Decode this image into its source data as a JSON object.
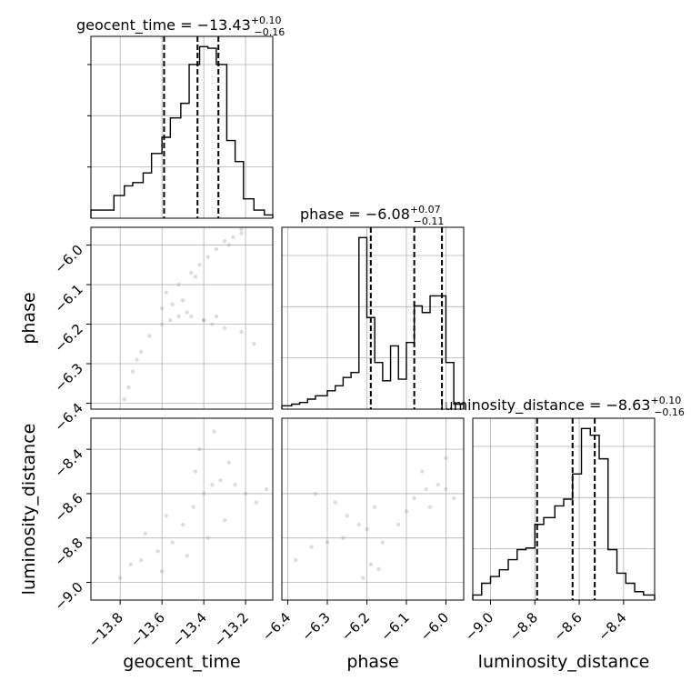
{
  "chart_data": {
    "type": "corner",
    "parameters": [
      "geocent_time",
      "phase",
      "luminosity_distance"
    ],
    "axis_labels": {
      "geocent_time": "geocent_time",
      "phase": "phase",
      "luminosity_distance": "luminosity_distance"
    },
    "ranges": {
      "geocent_time": [
        -13.94,
        -13.07
      ],
      "phase": [
        -6.415,
        -5.955
      ],
      "luminosity_distance": [
        -9.08,
        -8.26
      ]
    },
    "ticks": {
      "geocent_time": [
        -13.8,
        -13.6,
        -13.4,
        -13.2
      ],
      "phase": [
        -6.4,
        -6.3,
        -6.2,
        -6.1,
        -6.0
      ],
      "luminosity_distance": [
        -9.0,
        -8.8,
        -8.6,
        -8.4
      ]
    },
    "tick_labels": {
      "geocent_time": [
        "−13.8",
        "−13.6",
        "−13.4",
        "−13.2"
      ],
      "phase": [
        "−6.4",
        "−6.3",
        "−6.2",
        "−6.1",
        "−6.0"
      ],
      "luminosity_distance": [
        "−9.0",
        "−8.8",
        "−8.6",
        "−8.4"
      ]
    },
    "titles": {
      "geocent_time": {
        "text": "geocent_time = −13.43",
        "plus": "+0.10",
        "minus": "−0.16"
      },
      "phase": {
        "text": "phase = −6.08",
        "plus": "+0.07",
        "minus": "−0.11"
      },
      "luminosity_distance": {
        "text": "luminosity_distance = −8.63",
        "plus": "+0.10",
        "minus": "−0.16"
      }
    },
    "histograms": {
      "geocent_time": {
        "bin_edges": [
          -13.94,
          -13.89,
          -13.83,
          -13.78,
          -13.74,
          -13.69,
          -13.65,
          -13.6,
          -13.56,
          -13.51,
          -13.47,
          -13.42,
          -13.38,
          -13.34,
          -13.29,
          -13.25,
          -13.21,
          -13.16,
          -13.11,
          -13.07
        ],
        "counts": [
          0.05,
          0.05,
          0.14,
          0.2,
          0.22,
          0.28,
          0.4,
          0.5,
          0.62,
          0.71,
          0.95,
          1.06,
          1.05,
          0.95,
          0.48,
          0.35,
          0.12,
          0.05,
          0.02
        ],
        "quantiles": [
          -13.59,
          -13.43,
          -13.33
        ]
      },
      "phase": {
        "bin_edges": [
          -6.415,
          -6.39,
          -6.37,
          -6.35,
          -6.33,
          -6.3,
          -6.28,
          -6.26,
          -6.24,
          -6.22,
          -6.2,
          -6.18,
          -6.16,
          -6.14,
          -6.12,
          -6.1,
          -6.08,
          -6.06,
          -6.04,
          -6.02,
          -6.0,
          -5.98,
          -5.955
        ],
        "counts": [
          0.02,
          0.03,
          0.04,
          0.06,
          0.08,
          0.11,
          0.14,
          0.19,
          0.22,
          1.03,
          0.55,
          0.28,
          0.17,
          0.38,
          0.18,
          0.4,
          0.62,
          0.58,
          0.68,
          0.68,
          0.28,
          0.03
        ],
        "quantiles": [
          -6.19,
          -6.08,
          -6.01
        ]
      },
      "luminosity_distance": {
        "bin_edges": [
          -9.08,
          -9.04,
          -9.0,
          -8.96,
          -8.92,
          -8.88,
          -8.84,
          -8.8,
          -8.76,
          -8.71,
          -8.67,
          -8.63,
          -8.59,
          -8.55,
          -8.51,
          -8.47,
          -8.43,
          -8.39,
          -8.35,
          -8.31,
          -8.26
        ],
        "counts": [
          0.03,
          0.1,
          0.14,
          0.18,
          0.24,
          0.3,
          0.31,
          0.45,
          0.49,
          0.56,
          0.6,
          0.75,
          1.02,
          0.98,
          0.84,
          0.3,
          0.16,
          0.1,
          0.05,
          0.03
        ],
        "quantiles": [
          -8.79,
          -8.63,
          -8.53
        ]
      }
    },
    "scatter": {
      "phase_vs_geocent_time": {
        "x": [
          -13.78,
          -13.76,
          -13.74,
          -13.72,
          -13.7,
          -13.66,
          -13.6,
          -13.56,
          -13.52,
          -13.46,
          -13.4,
          -13.36,
          -13.3,
          -13.22,
          -13.16,
          -13.58,
          -13.52,
          -13.46,
          -13.42,
          -13.38,
          -13.34,
          -13.3,
          -13.26,
          -13.22,
          -13.5,
          -13.44,
          -13.6,
          -13.55,
          -13.48,
          -13.4,
          -13.34,
          -13.28,
          -13.22
        ],
        "y": [
          -6.39,
          -6.36,
          -6.32,
          -6.29,
          -6.27,
          -6.23,
          -6.2,
          -6.19,
          -6.18,
          -6.18,
          -6.19,
          -6.2,
          -6.21,
          -6.22,
          -6.25,
          -6.12,
          -6.1,
          -6.07,
          -6.05,
          -6.03,
          -6.01,
          -5.99,
          -5.98,
          -5.97,
          -6.14,
          -6.08,
          -6.16,
          -6.15,
          -6.17,
          -6.19,
          -6.18,
          -6.0,
          -5.96
        ]
      },
      "luminosity_distance_vs_geocent_time": {
        "x": [
          -13.8,
          -13.75,
          -13.7,
          -13.62,
          -13.55,
          -13.5,
          -13.45,
          -13.4,
          -13.36,
          -13.32,
          -13.25,
          -13.2,
          -13.15,
          -13.1,
          -13.6,
          -13.48,
          -13.38,
          -13.3,
          -13.42,
          -13.35,
          -13.68,
          -13.58,
          -13.44,
          -13.28
        ],
        "y": [
          -8.98,
          -8.92,
          -8.9,
          -8.86,
          -8.82,
          -8.74,
          -8.66,
          -8.6,
          -8.56,
          -8.54,
          -8.56,
          -8.6,
          -8.64,
          -8.58,
          -8.95,
          -8.88,
          -8.8,
          -8.72,
          -8.4,
          -8.32,
          -8.78,
          -8.7,
          -8.5,
          -8.46
        ]
      },
      "luminosity_distance_vs_phase": {
        "x": [
          -6.38,
          -6.34,
          -6.3,
          -6.26,
          -6.22,
          -6.2,
          -6.18,
          -6.19,
          -6.16,
          -6.12,
          -6.08,
          -6.05,
          -6.02,
          -6.0,
          -5.98,
          -6.25,
          -6.21,
          -6.17,
          -6.1,
          -6.04,
          -6.06,
          -6.0,
          -6.33,
          -6.28
        ],
        "y": [
          -8.9,
          -8.84,
          -8.82,
          -8.8,
          -8.74,
          -8.76,
          -8.66,
          -8.92,
          -8.82,
          -8.74,
          -8.62,
          -8.58,
          -8.56,
          -8.58,
          -8.62,
          -8.7,
          -8.98,
          -8.94,
          -8.68,
          -8.66,
          -8.5,
          -8.44,
          -8.6,
          -8.64
        ]
      }
    }
  }
}
